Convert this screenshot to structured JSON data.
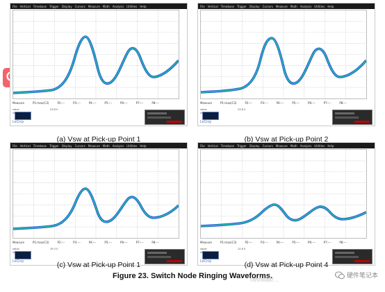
{
  "scope_menu": [
    "File",
    "Vertical",
    "Timebase",
    "Trigger",
    "Display",
    "Cursors",
    "Measure",
    "Math",
    "Analysis",
    "Utilities",
    "Help"
  ],
  "measure_labels": [
    "Measure",
    "P1:max(C3)",
    "P2:---",
    "P3:---",
    "P4:---",
    "P5:---",
    "P6:---",
    "P7:---",
    "P8:---"
  ],
  "status_rows": [
    "value",
    "status"
  ],
  "brand": "LeCroy",
  "panels": [
    {
      "id": "a",
      "caption": "(a)  Vsw at Pick-up Point 1",
      "p1": "23.8 V",
      "amplitude": "strong"
    },
    {
      "id": "b",
      "caption": "(b)  Vsw at Pick-up Point 2",
      "p1": "23.8 V",
      "amplitude": "strong"
    },
    {
      "id": "c",
      "caption": "(c)  Vsw at Pick-up Point 1",
      "p1": "19.3 V",
      "amplitude": "medium"
    },
    {
      "id": "d",
      "caption": "(d)  Vsw at Pick-up Point 4",
      "p1": "12.6 V",
      "amplitude": "weak"
    }
  ],
  "figure_caption": "Figure 23.    Switch Node Ringing Waveforms.",
  "watermark_url": "net/walt/...",
  "watermark_text": "硬件笔记本",
  "colors": {
    "trace_outer": "#2c49d8",
    "trace_mid": "#1f9ad6",
    "trace_inner": "#27c08a",
    "search_btn": "#f4626a"
  },
  "icons": {
    "search": "search-icon",
    "watermark": "wechat-icon"
  }
}
